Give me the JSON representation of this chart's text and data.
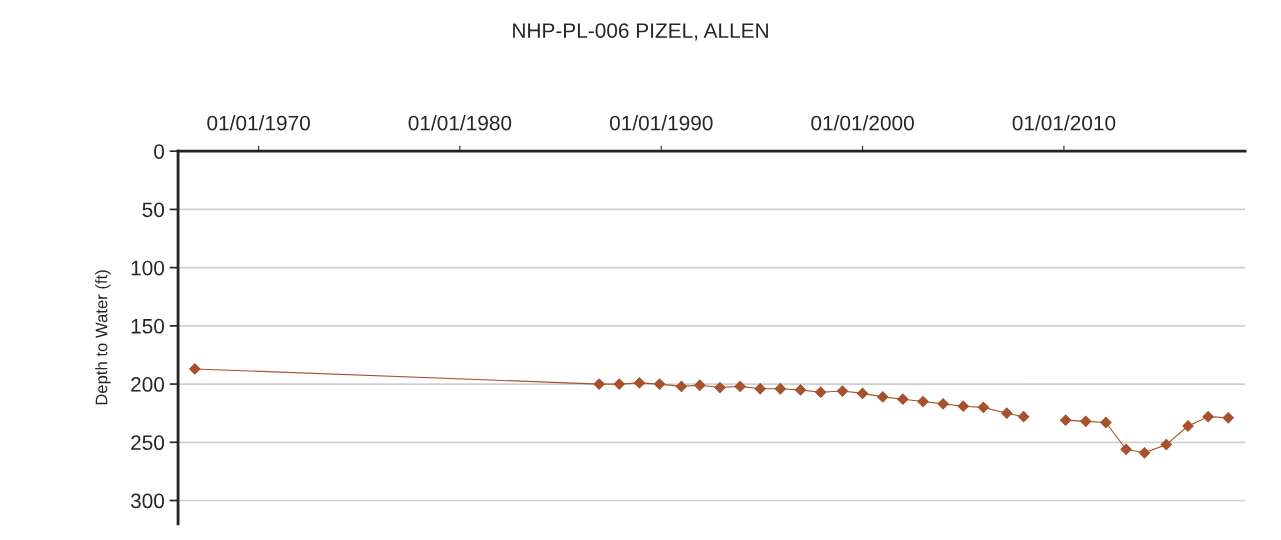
{
  "chart_data": {
    "type": "line",
    "title": "NHP-PL-006 PIZEL, ALLEN",
    "ylabel": "Depth to Water (ft)",
    "x": [
      "1966-11",
      "1986-12",
      "1987-12",
      "1988-12",
      "1989-12",
      "1991-01",
      "1991-12",
      "1992-12",
      "1993-12",
      "1994-12",
      "1995-12",
      "1996-12",
      "1997-12",
      "1999-01",
      "2000-01",
      "2001-01",
      "2002-01",
      "2003-01",
      "2004-01",
      "2005-01",
      "2006-01",
      "2007-03",
      "2008-01",
      "2009-01",
      "2010-02",
      "2011-02",
      "2012-02",
      "2013-02",
      "2014-01",
      "2015-02",
      "2016-03",
      "2017-03",
      "2018-03"
    ],
    "series": [
      {
        "color": "#a5522d",
        "values": [
          187,
          200,
          200,
          199,
          200,
          202,
          201,
          203,
          202,
          204,
          204,
          205,
          207,
          206,
          208,
          211,
          213,
          215,
          217,
          219,
          220,
          225,
          228,
          null,
          231,
          232,
          233,
          256,
          259,
          252,
          236,
          228,
          229
        ]
      }
    ],
    "xlim": [
      "1966-01-01",
      "2019-01-01"
    ],
    "xticks": [
      {
        "value": "1970-01-01",
        "label": "01/01/1970"
      },
      {
        "value": "1980-01-01",
        "label": "01/01/1980"
      },
      {
        "value": "1990-01-01",
        "label": "01/01/1990"
      },
      {
        "value": "2000-01-01",
        "label": "01/01/2000"
      },
      {
        "value": "2010-01-01",
        "label": "01/01/2010"
      }
    ],
    "ylim": [
      320,
      0
    ],
    "yticks": [
      0,
      50,
      100,
      150,
      200,
      250,
      300
    ],
    "grid": "y",
    "marker": "diamond",
    "line_style": "solid",
    "legend": false
  }
}
